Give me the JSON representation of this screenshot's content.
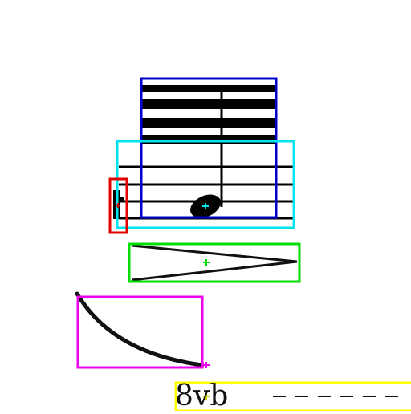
{
  "score_fragment": {
    "octave_marking": {
      "text": "8vb",
      "line_style": "dashed"
    },
    "elements": [
      "ledger-lines",
      "staff-lines",
      "quarter-note",
      "accidental",
      "decrescendo-hairpin",
      "slur",
      "octave-marking"
    ]
  },
  "annotations": {
    "colors": {
      "note_region": "#0000cc",
      "staff_region": "#00e5ee",
      "accidental_region": "#e00000",
      "hairpin_region": "#00dd00",
      "slur_region": "#ee00ee",
      "octave_region": "#ffff00"
    }
  }
}
